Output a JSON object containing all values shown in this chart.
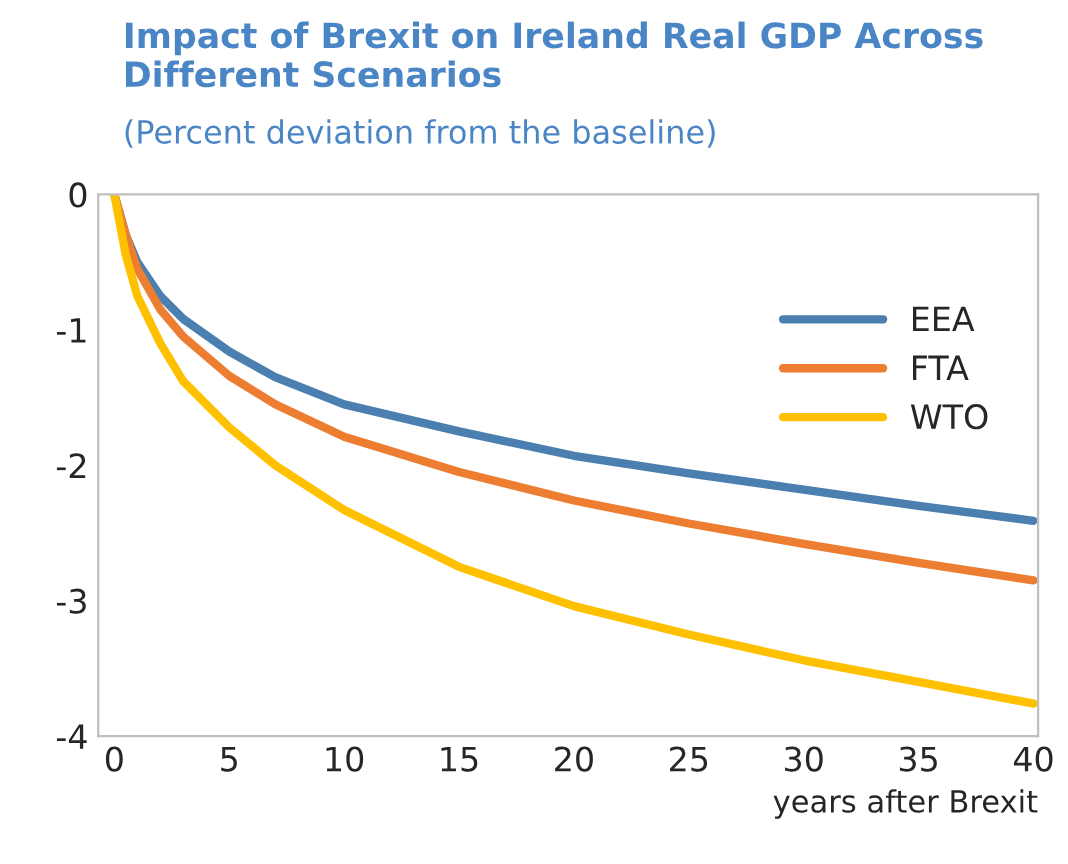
{
  "chart_data": {
    "type": "line",
    "title": "Impact of Brexit on Ireland Real GDP Across\nDifferent Scenarios",
    "subtitle": "(Percent deviation from the baseline)",
    "xlabel": "years after Brexit",
    "x": [
      0,
      0.5,
      1,
      2,
      3,
      5,
      7,
      10,
      15,
      20,
      25,
      30,
      35,
      40
    ],
    "series": [
      {
        "name": "EEA",
        "color": "#4a7fb0",
        "values": [
          0,
          -0.3,
          -0.5,
          -0.75,
          -0.92,
          -1.16,
          -1.35,
          -1.55,
          -1.75,
          -1.93,
          -2.06,
          -2.18,
          -2.3,
          -2.41
        ]
      },
      {
        "name": "FTA",
        "color": "#ed7d31",
        "values": [
          0,
          -0.3,
          -0.55,
          -0.85,
          -1.05,
          -1.34,
          -1.55,
          -1.79,
          -2.05,
          -2.26,
          -2.43,
          -2.58,
          -2.72,
          -2.85
        ]
      },
      {
        "name": "WTO",
        "color": "#ffc000",
        "values": [
          0,
          -0.45,
          -0.75,
          -1.1,
          -1.38,
          -1.72,
          -2.0,
          -2.33,
          -2.75,
          -3.04,
          -3.25,
          -3.44,
          -3.6,
          -3.76
        ]
      }
    ],
    "xlim": [
      -0.7,
      40.2
    ],
    "xticks": [
      0,
      5,
      10,
      15,
      20,
      25,
      30,
      35,
      40
    ],
    "ylim": [
      -4,
      0
    ],
    "yticks": [
      -4,
      -3,
      -2,
      -1,
      0
    ],
    "grid": false,
    "legend": "top right",
    "marker": "none",
    "line_style": "solid"
  }
}
